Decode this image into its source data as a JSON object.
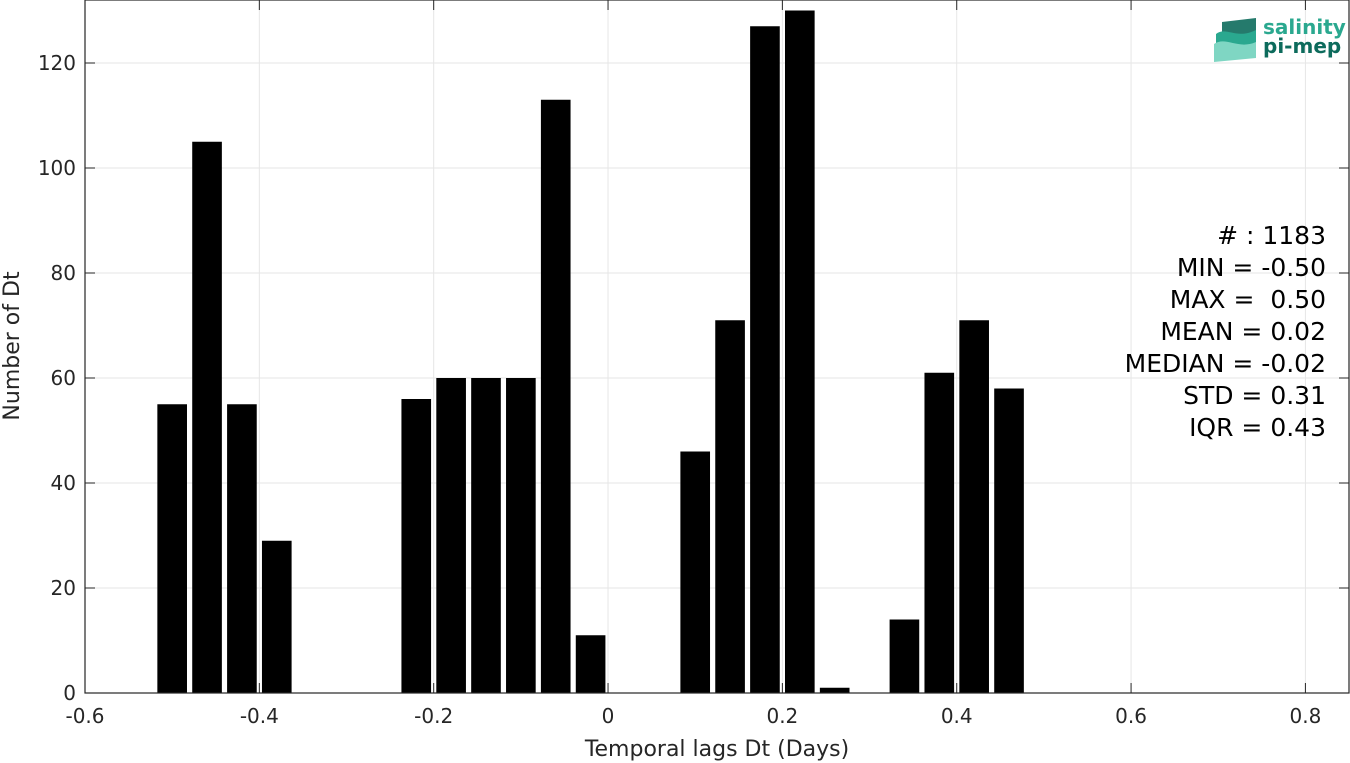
{
  "chart_data": {
    "type": "bar",
    "xlabel": "Temporal lags Dt (Days)",
    "ylabel": "Number of Dt",
    "xlim": [
      -0.6,
      0.85
    ],
    "ylim": [
      0,
      132
    ],
    "grid": true,
    "bar_width": 0.034,
    "x_ticks": [
      {
        "value": -0.6,
        "label": "-0.6"
      },
      {
        "value": -0.4,
        "label": "-0.4"
      },
      {
        "value": -0.2,
        "label": "-0.2"
      },
      {
        "value": 0,
        "label": "0"
      },
      {
        "value": 0.2,
        "label": "0.2"
      },
      {
        "value": 0.4,
        "label": "0.4"
      },
      {
        "value": 0.6,
        "label": "0.6"
      },
      {
        "value": 0.8,
        "label": "0.8"
      }
    ],
    "y_ticks": [
      {
        "value": 0,
        "label": "0"
      },
      {
        "value": 20,
        "label": "20"
      },
      {
        "value": 40,
        "label": "40"
      },
      {
        "value": 60,
        "label": "60"
      },
      {
        "value": 80,
        "label": "80"
      },
      {
        "value": 100,
        "label": "100"
      },
      {
        "value": 120,
        "label": "120"
      }
    ],
    "bars": [
      {
        "x": -0.5,
        "y": 55
      },
      {
        "x": -0.46,
        "y": 105
      },
      {
        "x": -0.42,
        "y": 55
      },
      {
        "x": -0.38,
        "y": 29
      },
      {
        "x": -0.38,
        "y": 0
      },
      {
        "x": -0.22,
        "y": 56
      },
      {
        "x": -0.18,
        "y": 60
      },
      {
        "x": -0.14,
        "y": 60
      },
      {
        "x": -0.1,
        "y": 60
      },
      {
        "x": -0.06,
        "y": 113
      },
      {
        "x": -0.02,
        "y": 11
      },
      {
        "x": 0.1,
        "y": 46
      },
      {
        "x": 0.14,
        "y": 71
      },
      {
        "x": 0.18,
        "y": 127
      },
      {
        "x": 0.22,
        "y": 130
      },
      {
        "x": 0.26,
        "y": 1
      },
      {
        "x": 0.34,
        "y": 14
      },
      {
        "x": 0.38,
        "y": 61
      },
      {
        "x": 0.42,
        "y": 71
      },
      {
        "x": 0.46,
        "y": 58
      }
    ],
    "stats_lines": [
      "# : 1183",
      "MIN = -0.50",
      "MAX =  0.50",
      "MEAN = 0.02",
      "MEDIAN = -0.02",
      "STD = 0.31",
      "IQR = 0.43"
    ]
  },
  "logo": {
    "line1": "salinity",
    "line2": "pi-mep",
    "color_primary": "#2aa88f",
    "color_dark": "#0d6b5c"
  }
}
